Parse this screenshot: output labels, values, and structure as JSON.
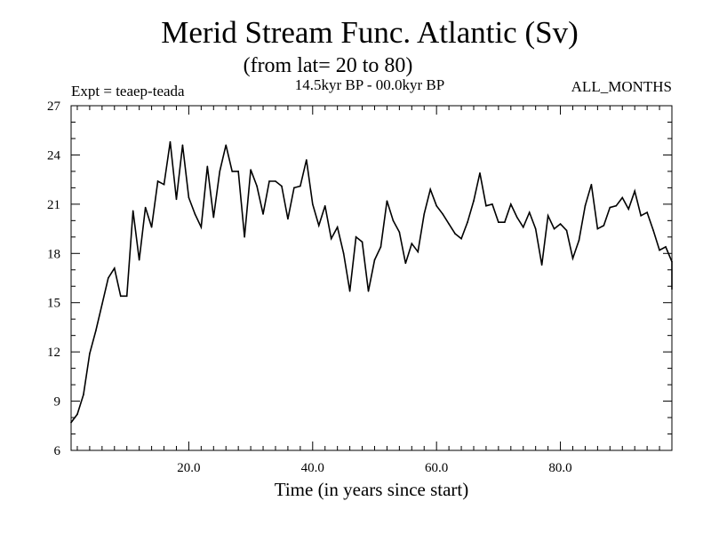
{
  "chart_data": {
    "type": "line",
    "title": "Merid Stream Func. Atlantic (Sv)",
    "subtitle": "(from lat= 20 to 80)",
    "period": "14.5kyr BP - 00.0kyr BP",
    "experiment": "Expt = teaep-teada",
    "months": "ALL_MONTHS",
    "xlabel": "Time (in years since start)",
    "ylabel": "",
    "xlim": [
      1,
      98
    ],
    "ylim": [
      6,
      27
    ],
    "xticks": [
      20,
      40,
      60,
      80
    ],
    "xtick_labels": [
      "20.0",
      "40.0",
      "60.0",
      "80.0"
    ],
    "yticks": [
      6,
      9,
      12,
      15,
      18,
      21,
      24,
      27
    ],
    "ytick_labels": [
      "6",
      "9",
      "12",
      "15",
      "18",
      "21",
      "24",
      "27"
    ],
    "grid": false,
    "series": [
      {
        "name": "teaep-teada",
        "color": "#000000",
        "x": [
          1,
          2,
          3,
          4,
          5,
          6,
          7,
          8,
          9,
          10,
          11,
          12,
          13,
          14,
          15,
          16,
          17,
          18,
          19,
          20,
          21,
          22,
          23,
          24,
          25,
          26,
          27,
          28,
          29,
          30,
          31,
          32,
          33,
          34,
          35,
          36,
          37,
          38,
          39,
          40,
          41,
          42,
          43,
          44,
          45,
          46,
          47,
          48,
          49,
          50,
          51,
          52,
          53,
          54,
          55,
          56,
          57,
          58,
          59,
          60,
          61,
          62,
          63,
          64,
          65,
          66,
          67,
          68,
          69,
          70,
          71,
          72,
          73,
          74,
          75,
          76,
          77,
          78,
          79,
          80,
          81,
          82,
          83,
          84,
          85,
          86,
          87,
          88,
          89,
          90,
          91,
          92,
          93,
          94,
          95,
          96,
          97,
          98
        ],
        "y": [
          7.7,
          8.2,
          9.4,
          11.9,
          13.3,
          14.9,
          16.5,
          17.1,
          15.4,
          15.4,
          20.6,
          17.6,
          20.8,
          19.6,
          22.4,
          22.2,
          24.8,
          21.3,
          24.6,
          21.4,
          20.4,
          19.6,
          23.3,
          20.2,
          23.0,
          24.6,
          23.0,
          23.0,
          19.0,
          23.1,
          22.1,
          20.4,
          22.4,
          22.4,
          22.1,
          20.1,
          22.0,
          22.1,
          23.7,
          21.0,
          19.7,
          20.9,
          18.9,
          19.6,
          18.0,
          15.7,
          19.0,
          18.7,
          15.7,
          17.6,
          18.4,
          21.2,
          20.0,
          19.3,
          17.4,
          18.6,
          18.1,
          20.4,
          21.9,
          20.9,
          20.4,
          19.8,
          19.2,
          18.9,
          19.9,
          21.2,
          22.9,
          20.9,
          21.0,
          19.9,
          19.9,
          21.0,
          20.2,
          19.6,
          20.5,
          19.5,
          17.3,
          20.3,
          19.5,
          19.8,
          19.4,
          17.7,
          18.8,
          20.9,
          22.2,
          19.5,
          19.7,
          20.8,
          20.9,
          21.4,
          20.7,
          21.8,
          20.3,
          20.5,
          19.4,
          18.2,
          18.4,
          17.5
        ]
      }
    ],
    "x_extra": [
      98.5
    ],
    "y_extra": [
      15.8
    ]
  }
}
